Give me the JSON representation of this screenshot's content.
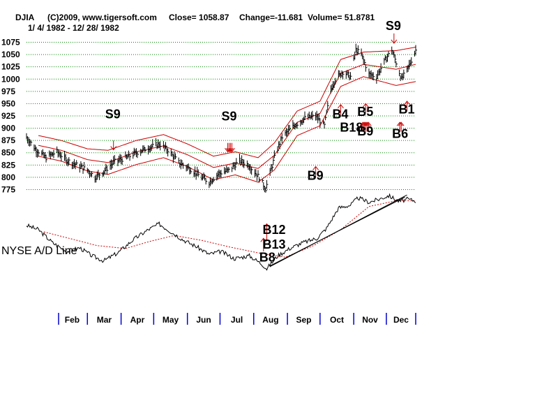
{
  "header": {
    "symbol": "DJIA",
    "copyright": "(C)2009, www.tigersoft.com",
    "close": "Close=  1058.87",
    "change": "Change=-11.681",
    "volume": "Volume=  51.8781",
    "date_range": "1/ 4/ 1982 - 12/ 28/ 1982"
  },
  "indicator_label": "NYSE A/D Line",
  "colors": {
    "price_bars": "#000000",
    "bands": "#cc0000",
    "signal_arrows": "#cc0000",
    "grid": "#008800",
    "adl_line": "#000000",
    "adl_ma": "#cc0000",
    "month_ticks": "#0000cc"
  },
  "chart_data": {
    "type": "line",
    "title": "DJIA",
    "x_range": [
      "1982-01-04",
      "1982-12-28"
    ],
    "ylim": [
      770,
      1080
    ],
    "yticks": [
      775,
      800,
      825,
      850,
      875,
      900,
      925,
      950,
      975,
      1000,
      1025,
      1050,
      1075
    ],
    "grid": true,
    "months": [
      "Feb",
      "Mar",
      "Apr",
      "May",
      "Jun",
      "Jul",
      "Aug",
      "Sep",
      "Oct",
      "Nov",
      "Dec"
    ],
    "price_points": [
      [
        "1982-01-04",
        882
      ],
      [
        "1982-01-12",
        858
      ],
      [
        "1982-01-22",
        840
      ],
      [
        "1982-02-01",
        852
      ],
      [
        "1982-02-10",
        835
      ],
      [
        "1982-02-22",
        822
      ],
      [
        "1982-03-01",
        815
      ],
      [
        "1982-03-08",
        800
      ],
      [
        "1982-03-16",
        812
      ],
      [
        "1982-03-26",
        832
      ],
      [
        "1982-04-06",
        840
      ],
      [
        "1982-04-15",
        850
      ],
      [
        "1982-04-26",
        860
      ],
      [
        "1982-05-06",
        868
      ],
      [
        "1982-05-14",
        856
      ],
      [
        "1982-05-24",
        830
      ],
      [
        "1982-06-03",
        818
      ],
      [
        "1982-06-14",
        800
      ],
      [
        "1982-06-21",
        790
      ],
      [
        "1982-06-30",
        808
      ],
      [
        "1982-07-09",
        814
      ],
      [
        "1982-07-19",
        834
      ],
      [
        "1982-07-27",
        826
      ],
      [
        "1982-08-06",
        800
      ],
      [
        "1982-08-12",
        777
      ],
      [
        "1982-08-20",
        840
      ],
      [
        "1982-08-27",
        882
      ],
      [
        "1982-09-07",
        905
      ],
      [
        "1982-09-17",
        920
      ],
      [
        "1982-09-27",
        925
      ],
      [
        "1982-10-05",
        905
      ],
      [
        "1982-10-11",
        980
      ],
      [
        "1982-10-15",
        1000
      ],
      [
        "1982-10-22",
        1015
      ],
      [
        "1982-10-29",
        1005
      ],
      [
        "1982-11-03",
        1060
      ],
      [
        "1982-11-08",
        1050
      ],
      [
        "1982-11-15",
        1010
      ],
      [
        "1982-11-22",
        1005
      ],
      [
        "1982-11-30",
        1039
      ],
      [
        "1982-12-06",
        1060
      ],
      [
        "1982-12-15",
        1000
      ],
      [
        "1982-12-20",
        1018
      ],
      [
        "1982-12-28",
        1058.87
      ]
    ],
    "series": [
      {
        "name": "Upper band",
        "values": [
          [
            "1982-01-15",
            885
          ],
          [
            "1982-02-05",
            875
          ],
          [
            "1982-03-01",
            858
          ],
          [
            "1982-03-20",
            855
          ],
          [
            "1982-04-15",
            875
          ],
          [
            "1982-05-10",
            887
          ],
          [
            "1982-06-01",
            868
          ],
          [
            "1982-06-25",
            843
          ],
          [
            "1982-07-15",
            852
          ],
          [
            "1982-08-05",
            840
          ],
          [
            "1982-08-20",
            870
          ],
          [
            "1982-09-10",
            935
          ],
          [
            "1982-10-01",
            955
          ],
          [
            "1982-10-20",
            1040
          ],
          [
            "1982-11-10",
            1055
          ],
          [
            "1982-12-10",
            1058
          ],
          [
            "1982-12-28",
            1065
          ]
        ]
      },
      {
        "name": "Middle band",
        "values": [
          [
            "1982-01-15",
            865
          ],
          [
            "1982-02-05",
            855
          ],
          [
            "1982-03-01",
            836
          ],
          [
            "1982-03-20",
            830
          ],
          [
            "1982-04-15",
            852
          ],
          [
            "1982-05-10",
            864
          ],
          [
            "1982-06-01",
            846
          ],
          [
            "1982-06-25",
            820
          ],
          [
            "1982-07-15",
            829
          ],
          [
            "1982-08-05",
            818
          ],
          [
            "1982-08-20",
            845
          ],
          [
            "1982-09-10",
            912
          ],
          [
            "1982-10-01",
            930
          ],
          [
            "1982-10-20",
            1012
          ],
          [
            "1982-11-10",
            1030
          ],
          [
            "1982-12-10",
            1020
          ],
          [
            "1982-12-28",
            1030
          ]
        ]
      },
      {
        "name": "Lower band",
        "values": [
          [
            "1982-01-15",
            843
          ],
          [
            "1982-02-05",
            833
          ],
          [
            "1982-03-01",
            813
          ],
          [
            "1982-03-20",
            806
          ],
          [
            "1982-04-15",
            826
          ],
          [
            "1982-05-10",
            840
          ],
          [
            "1982-06-01",
            822
          ],
          [
            "1982-06-25",
            795
          ],
          [
            "1982-07-15",
            805
          ],
          [
            "1982-08-05",
            790
          ],
          [
            "1982-08-20",
            815
          ],
          [
            "1982-09-10",
            885
          ],
          [
            "1982-10-01",
            905
          ],
          [
            "1982-10-20",
            985
          ],
          [
            "1982-11-10",
            1005
          ],
          [
            "1982-12-10",
            987
          ],
          [
            "1982-12-28",
            995
          ]
        ]
      }
    ],
    "signals": [
      {
        "label": "S9",
        "date": "1982-03-25",
        "dir": "down",
        "label_value": 920,
        "arrow_top": 875,
        "arrow_bottom": 856
      },
      {
        "label": "S9",
        "date": "1982-07-10",
        "dir": "down",
        "label_value": 916,
        "arrow_top": 870,
        "arrow_bottom": 852,
        "multi": 4
      },
      {
        "label": "S9",
        "date": "1982-12-08",
        "dir": "down",
        "label_value": 1100,
        "arrow_top": 1093,
        "arrow_bottom": 1073
      },
      {
        "label": "B9",
        "date": "1982-09-27",
        "dir": "up",
        "label_value": 795,
        "arrow_top": 822,
        "arrow_bottom": 800
      },
      {
        "label": "B4",
        "date": "1982-10-20",
        "dir": "up",
        "label_value": 920,
        "arrow_top": 948,
        "arrow_bottom": 928
      },
      {
        "label": "B18",
        "date": "1982-10-27",
        "dir": "up",
        "label_value": 893,
        "arrow_top": 0,
        "arrow_bottom": 0
      },
      {
        "label": "B5",
        "date": "1982-11-12",
        "dir": "up",
        "label_value": 925,
        "arrow_top": 950,
        "arrow_bottom": 932
      },
      {
        "label": "B9",
        "date": "1982-11-12",
        "dir": "up",
        "label_value": 885,
        "arrow_top": 912,
        "arrow_bottom": 893,
        "multi": 5
      },
      {
        "label": "B1",
        "date": "1982-12-20",
        "dir": "up",
        "label_value": 930,
        "arrow_top": 955,
        "arrow_bottom": 935
      },
      {
        "label": "B6",
        "date": "1982-12-14",
        "dir": "up",
        "label_value": 880,
        "arrow_top": 912,
        "arrow_bottom": 893,
        "multi": 2
      }
    ]
  },
  "adl_chart": {
    "name": "NYSE A/D Line",
    "line": [
      [
        "1982-01-04",
        64
      ],
      [
        "1982-01-15",
        58
      ],
      [
        "1982-01-28",
        40
      ],
      [
        "1982-02-10",
        28
      ],
      [
        "1982-02-22",
        33
      ],
      [
        "1982-03-05",
        22
      ],
      [
        "1982-03-16",
        15
      ],
      [
        "1982-03-29",
        26
      ],
      [
        "1982-04-12",
        44
      ],
      [
        "1982-04-26",
        58
      ],
      [
        "1982-05-06",
        66
      ],
      [
        "1982-05-14",
        58
      ],
      [
        "1982-05-28",
        44
      ],
      [
        "1982-06-10",
        34
      ],
      [
        "1982-06-21",
        24
      ],
      [
        "1982-07-02",
        28
      ],
      [
        "1982-07-14",
        18
      ],
      [
        "1982-07-28",
        22
      ],
      [
        "1982-08-09",
        10
      ],
      [
        "1982-08-13",
        4
      ],
      [
        "1982-08-23",
        22
      ],
      [
        "1982-09-03",
        32
      ],
      [
        "1982-09-15",
        40
      ],
      [
        "1982-09-28",
        46
      ],
      [
        "1982-10-07",
        60
      ],
      [
        "1982-10-18",
        88
      ],
      [
        "1982-10-29",
        92
      ],
      [
        "1982-11-05",
        102
      ],
      [
        "1982-11-15",
        96
      ],
      [
        "1982-11-24",
        100
      ],
      [
        "1982-12-03",
        105
      ],
      [
        "1982-12-13",
        97
      ],
      [
        "1982-12-20",
        100
      ],
      [
        "1982-12-28",
        98
      ]
    ],
    "moving_average": [
      [
        "1982-01-20",
        55
      ],
      [
        "1982-02-15",
        45
      ],
      [
        "1982-03-10",
        36
      ],
      [
        "1982-04-05",
        32
      ],
      [
        "1982-04-28",
        42
      ],
      [
        "1982-05-20",
        50
      ],
      [
        "1982-06-15",
        43
      ],
      [
        "1982-07-10",
        34
      ],
      [
        "1982-08-05",
        26
      ],
      [
        "1982-08-30",
        20
      ],
      [
        "1982-09-25",
        36
      ],
      [
        "1982-10-20",
        58
      ],
      [
        "1982-11-15",
        90
      ],
      [
        "1982-12-10",
        98
      ],
      [
        "1982-12-28",
        98
      ]
    ],
    "trendlines": [
      [
        [
          "1982-08-16",
          8
        ],
        [
          "1982-12-18",
          103
        ]
      ],
      [
        [
          "1982-08-16",
          7
        ],
        [
          "1982-12-20",
          106
        ]
      ]
    ],
    "signals": [
      {
        "label": "B8",
        "date": "1982-08-10",
        "dir": "up",
        "label_value": 14,
        "arrow_top": 46,
        "arrow_bottom": 28
      },
      {
        "label": "B13",
        "date": "1982-08-13",
        "dir": "up",
        "label_value": 32,
        "arrow_top": 66,
        "arrow_bottom": 44
      },
      {
        "label": "B12",
        "date": "1982-08-13",
        "dir": "up",
        "label_value": 52,
        "arrow_top": 0,
        "arrow_bottom": 0
      }
    ]
  }
}
